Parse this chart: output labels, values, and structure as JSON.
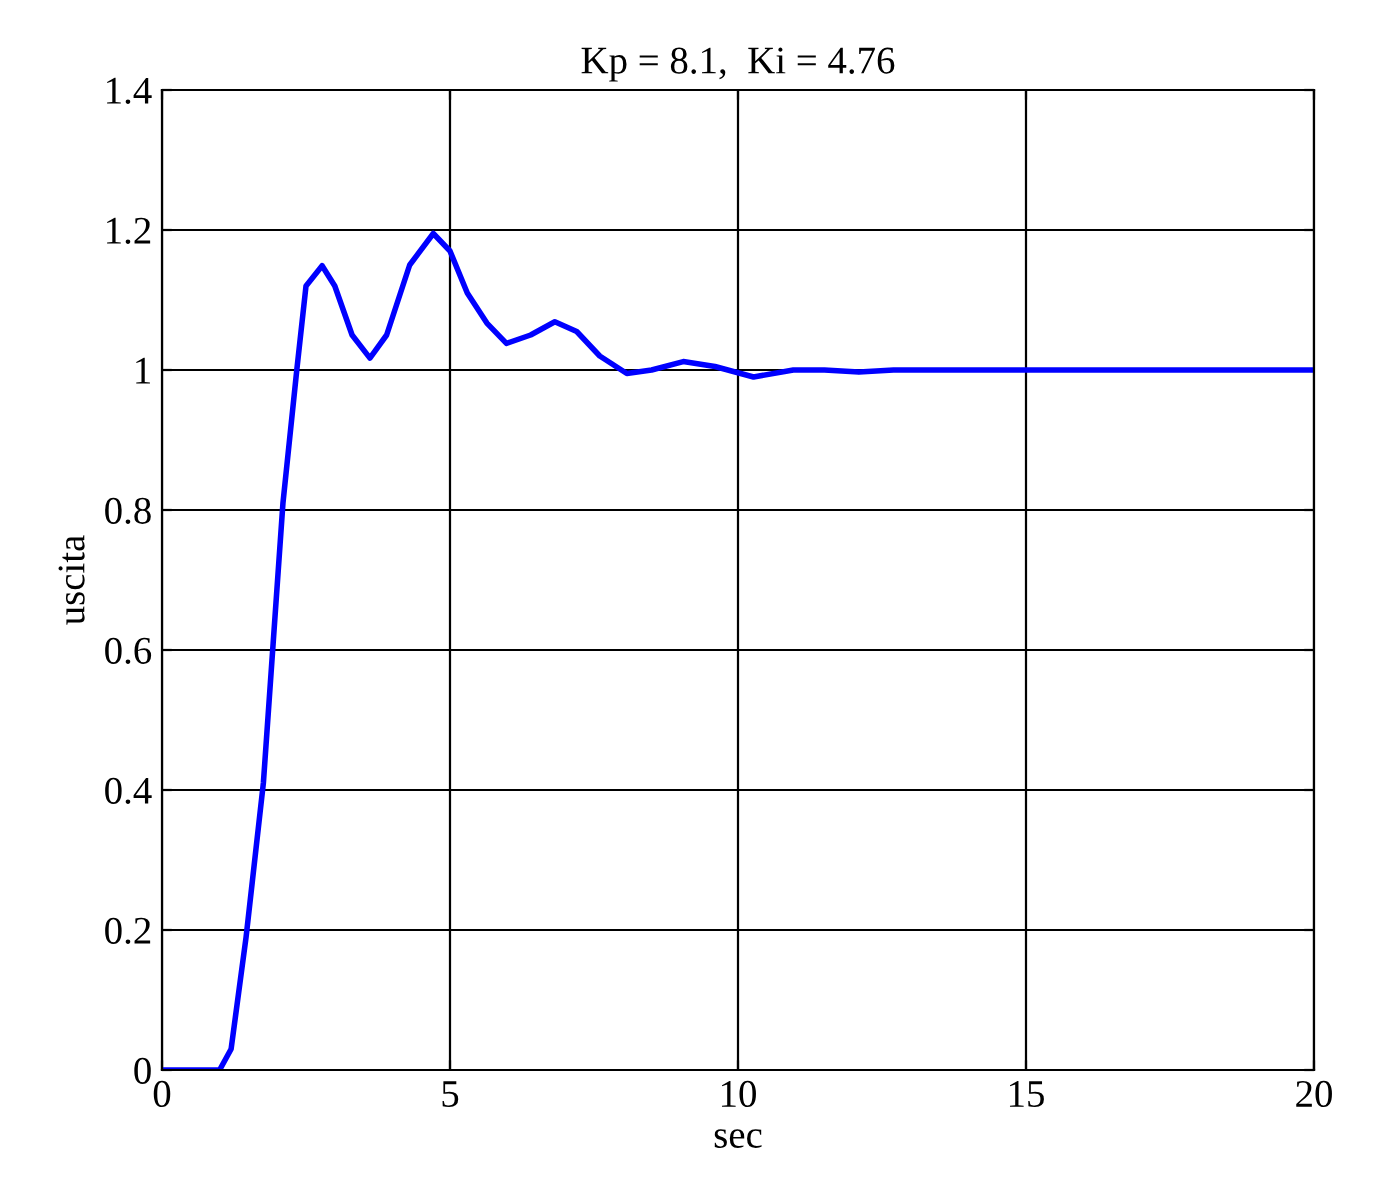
{
  "chart_data": {
    "type": "line",
    "title": "Kp = 8.1,  Ki = 4.76",
    "xlabel": "sec",
    "ylabel": "uscita",
    "x": [
      0,
      1.0,
      1.2,
      1.46,
      1.76,
      1.93,
      2.1,
      2.34,
      2.5,
      2.78,
      3.0,
      3.3,
      3.61,
      3.9,
      4.3,
      4.71,
      5.0,
      5.3,
      5.64,
      5.98,
      6.4,
      6.82,
      7.2,
      7.6,
      8.07,
      8.5,
      9.05,
      9.6,
      10.27,
      10.96,
      11.5,
      12.1,
      12.7,
      13.5,
      15,
      17.5,
      20
    ],
    "series": [
      {
        "color": "#0000ff",
        "values": [
          0,
          0,
          0.03,
          0.19,
          0.41,
          0.61,
          0.81,
          1.0,
          1.12,
          1.149,
          1.12,
          1.05,
          1.017,
          1.05,
          1.15,
          1.195,
          1.17,
          1.11,
          1.067,
          1.038,
          1.05,
          1.069,
          1.055,
          1.02,
          0.995,
          1.0,
          1.012,
          1.005,
          0.99,
          1.0,
          1.0,
          0.997,
          1.0,
          1.0,
          1.0,
          1.0,
          1.0
        ]
      }
    ],
    "xlim": [
      0,
      20
    ],
    "xticks": [
      0,
      5,
      10,
      15,
      20
    ],
    "ylim": [
      0,
      1.4
    ],
    "yticks": [
      0,
      0.2,
      0.4,
      0.6,
      0.8,
      1,
      1.2,
      1.4
    ],
    "grid": true,
    "line_style": "solid",
    "marker": "none"
  }
}
